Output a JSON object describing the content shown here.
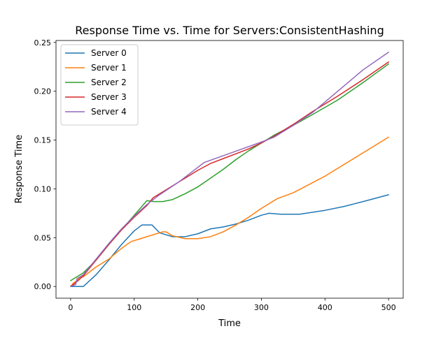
{
  "chart_data": {
    "type": "line",
    "title": "Response Time vs. Time for Servers:ConsistentHashing",
    "xlabel": "Time",
    "ylabel": "Response Time",
    "xlim": [
      -23,
      523
    ],
    "ylim": [
      -0.012,
      0.252
    ],
    "xticks": [
      0,
      100,
      200,
      300,
      400,
      500
    ],
    "xtick_labels": [
      "0",
      "100",
      "200",
      "300",
      "400",
      "500"
    ],
    "yticks": [
      0.0,
      0.05,
      0.1,
      0.15,
      0.2,
      0.25
    ],
    "ytick_labels": [
      "0.00",
      "0.05",
      "0.10",
      "0.15",
      "0.20",
      "0.25"
    ],
    "grid": false,
    "legend_position": "upper-left",
    "series": [
      {
        "name": "Server 0",
        "color": "#1f77b4",
        "x": [
          0,
          5,
          10,
          20,
          40,
          60,
          80,
          100,
          112,
          128,
          140,
          160,
          180,
          200,
          220,
          240,
          260,
          280,
          300,
          312,
          330,
          360,
          400,
          430,
          460,
          500
        ],
        "y": [
          0,
          0,
          0,
          0,
          0.012,
          0.027,
          0.043,
          0.057,
          0.063,
          0.063,
          0.055,
          0.051,
          0.051,
          0.054,
          0.059,
          0.061,
          0.064,
          0.068,
          0.073,
          0.075,
          0.074,
          0.074,
          0.078,
          0.082,
          0.087,
          0.094
        ]
      },
      {
        "name": "Server 1",
        "color": "#ff7f0e",
        "x": [
          0,
          5,
          10,
          15,
          20,
          40,
          60,
          80,
          95,
          110,
          130,
          145,
          150,
          160,
          180,
          200,
          220,
          240,
          260,
          280,
          300,
          325,
          350,
          400,
          450,
          500
        ],
        "y": [
          0,
          0.004,
          0.006,
          0.009,
          0.01,
          0.02,
          0.028,
          0.039,
          0.046,
          0.049,
          0.053,
          0.056,
          0.056,
          0.052,
          0.049,
          0.049,
          0.051,
          0.056,
          0.063,
          0.071,
          0.08,
          0.09,
          0.096,
          0.113,
          0.133,
          0.153
        ]
      },
      {
        "name": "Server 2",
        "color": "#2ca02c",
        "x": [
          0,
          10,
          20,
          40,
          60,
          80,
          100,
          120,
          130,
          145,
          160,
          180,
          200,
          220,
          240,
          260,
          280,
          300,
          320,
          350,
          380,
          420,
          460,
          500
        ],
        "y": [
          0.006,
          0.01,
          0.014,
          0.027,
          0.043,
          0.058,
          0.073,
          0.088,
          0.087,
          0.087,
          0.089,
          0.095,
          0.102,
          0.111,
          0.12,
          0.13,
          0.139,
          0.147,
          0.155,
          0.165,
          0.176,
          0.191,
          0.209,
          0.228
        ]
      },
      {
        "name": "Server 3",
        "color": "#d62728",
        "x": [
          0,
          10,
          20,
          40,
          60,
          80,
          100,
          120,
          130,
          150,
          180,
          200,
          220,
          240,
          260,
          280,
          300,
          320,
          350,
          380,
          420,
          460,
          500
        ],
        "y": [
          0,
          0.005,
          0.011,
          0.027,
          0.043,
          0.058,
          0.071,
          0.083,
          0.091,
          0.099,
          0.111,
          0.119,
          0.126,
          0.131,
          0.136,
          0.141,
          0.147,
          0.154,
          0.166,
          0.179,
          0.195,
          0.212,
          0.23
        ]
      },
      {
        "name": "Server 4",
        "color": "#9467bd",
        "x": [
          0,
          8,
          10,
          20,
          40,
          60,
          80,
          100,
          120,
          140,
          170,
          190,
          210,
          240,
          270,
          300,
          320,
          350,
          380,
          420,
          460,
          500
        ],
        "y": [
          0,
          0.002,
          0.008,
          0.012,
          0.028,
          0.044,
          0.059,
          0.072,
          0.084,
          0.094,
          0.107,
          0.117,
          0.127,
          0.134,
          0.141,
          0.148,
          0.153,
          0.165,
          0.178,
          0.2,
          0.222,
          0.24
        ]
      }
    ]
  }
}
